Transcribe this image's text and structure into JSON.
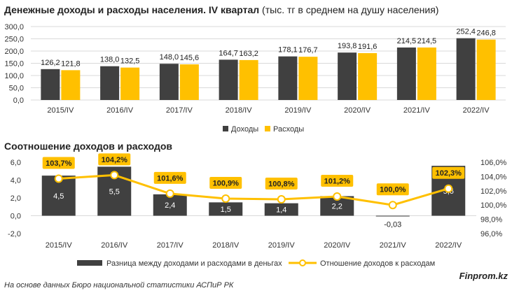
{
  "chart1": {
    "title_bold": "Денежные доходы и расходы населения. IV квартал",
    "title_rest": " (тыс. тг в среднем на душу населения)"
  },
  "chart2": {
    "title": "Соотношение доходов и расходов"
  },
  "footer": {
    "source": "На основе данных Бюро национальной статистики АСПиР РК",
    "brand": "Finprom.kz"
  },
  "colors": {
    "income": "#404040",
    "expense": "#ffc000",
    "ratio_line": "#ffc000",
    "ratio_label_bg": "#ffc000"
  },
  "chart_data": [
    {
      "type": "bar",
      "title": "Денежные доходы и расходы населения. IV квартал (тыс. тг в среднем на душу населения)",
      "categories": [
        "2015/IV",
        "2016/IV",
        "2017/IV",
        "2018/IV",
        "2019/IV",
        "2020/IV",
        "2021/IV",
        "2022/IV"
      ],
      "series": [
        {
          "name": "Доходы",
          "values": [
            126.2,
            138.0,
            148.0,
            164.7,
            178.1,
            193.8,
            214.5,
            252.4
          ],
          "labels": [
            "126,2",
            "138,0",
            "148,0",
            "164,7",
            "178,1",
            "193,8",
            "214,5",
            "252,4"
          ]
        },
        {
          "name": "Расходы",
          "values": [
            121.8,
            132.5,
            145.6,
            163.2,
            176.7,
            191.6,
            214.5,
            246.8
          ],
          "labels": [
            "121,8",
            "132,5",
            "145,6",
            "163,2",
            "176,7",
            "191,6",
            "214,5",
            "246,8"
          ]
        }
      ],
      "ylim": [
        0,
        300
      ],
      "yticks": [
        "0,0",
        "50,0",
        "100,0",
        "150,0",
        "200,0",
        "250,0",
        "300,0"
      ],
      "legend_position": "bottom",
      "grid": true
    },
    {
      "type": "bar",
      "title": "Соотношение доходов и расходов",
      "categories": [
        "2015/IV",
        "2016/IV",
        "2017/IV",
        "2018/IV",
        "2019/IV",
        "2020/IV",
        "2021/IV",
        "2022/IV"
      ],
      "series": [
        {
          "name": "Разница между доходами и расходами в деньгах",
          "type": "bar",
          "axis": "left",
          "values": [
            4.5,
            5.5,
            2.4,
            1.5,
            1.4,
            2.2,
            -0.03,
            5.6
          ],
          "labels": [
            "4,5",
            "5,5",
            "2,4",
            "1,5",
            "1,4",
            "2,2",
            "-0,03",
            "5,6"
          ]
        },
        {
          "name": "Отношение доходов к расходам",
          "type": "line",
          "axis": "right",
          "values": [
            103.7,
            104.2,
            101.6,
            100.9,
            100.8,
            101.2,
            100.0,
            102.3
          ],
          "labels": [
            "103,7%",
            "104,2%",
            "101,6%",
            "100,9%",
            "100,8%",
            "101,2%",
            "100,0%",
            "102,3%"
          ]
        }
      ],
      "ylim_left": [
        -2,
        6
      ],
      "yticks_left": [
        "-2,0",
        "0,0",
        "2,0",
        "4,0",
        "6,0"
      ],
      "ylim_right": [
        96,
        106
      ],
      "yticks_right": [
        "96,0%",
        "98,0%",
        "100,0%",
        "102,0%",
        "104,0%",
        "106,0%"
      ],
      "legend_position": "bottom",
      "grid": false
    }
  ]
}
